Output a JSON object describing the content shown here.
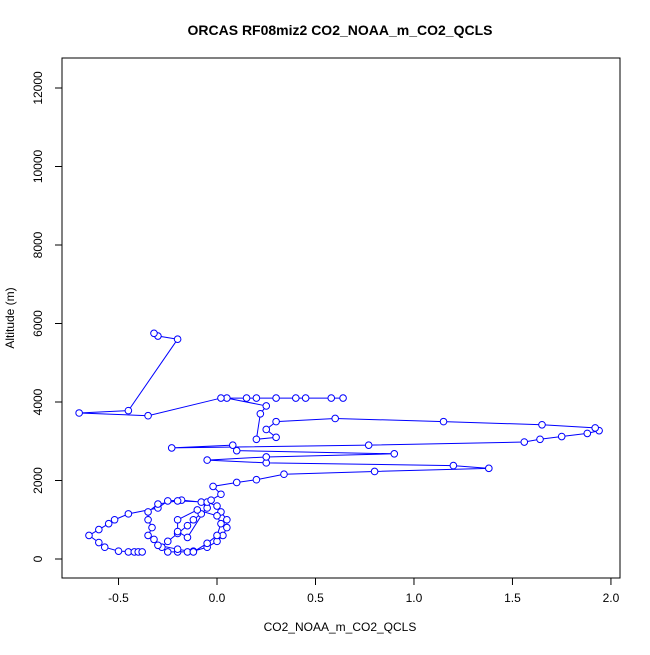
{
  "chart_data": {
    "type": "line",
    "title": "ORCAS RF08miz2 CO2_NOAA_m_CO2_QCLS",
    "x_label": "CO2_NOAA_m_CO2_QCLS",
    "y_label": "Altitude (m)",
    "x": [
      -0.45,
      -0.42,
      -0.4,
      -0.38,
      -0.5,
      -0.57,
      -0.6,
      -0.65,
      -0.6,
      -0.55,
      -0.52,
      -0.45,
      -0.3,
      -0.25,
      -0.18,
      -0.08,
      -0.05,
      -0.08,
      -0.12,
      -0.15,
      -0.2,
      -0.25,
      -0.28,
      -0.25,
      -0.2,
      -0.15,
      -0.12,
      -0.05,
      0.0,
      0.03,
      0.05,
      0.05,
      0.02,
      0.0,
      -0.05,
      -0.2,
      -0.3,
      -0.35,
      -0.35,
      -0.33,
      -0.35,
      -0.32,
      -0.3,
      -0.2,
      -0.12,
      -0.05,
      0.0,
      0.02,
      0.0,
      -0.1,
      -0.2,
      -0.2,
      -0.15,
      -0.03,
      0.02,
      -0.02,
      0.1,
      0.2,
      0.34,
      0.8,
      1.38,
      1.2,
      0.25,
      -0.05,
      0.25,
      0.9,
      0.1,
      0.08,
      -0.23,
      0.77,
      1.56,
      1.64,
      1.75,
      1.88,
      1.94,
      1.92,
      1.65,
      1.15,
      0.6,
      0.3,
      0.25,
      0.3,
      0.2,
      0.22,
      0.25,
      0.05,
      0.15,
      0.3,
      0.45,
      0.64,
      0.58,
      0.4,
      0.2,
      0.02,
      -0.35,
      -0.7,
      -0.45,
      -0.2,
      -0.3,
      -0.32
    ],
    "series": [
      {
        "color": "#0000ff",
        "values": [
          180,
          180,
          180,
          180,
          200,
          300,
          420,
          600,
          750,
          900,
          1000,
          1150,
          1300,
          1480,
          1500,
          1450,
          1300,
          1150,
          1000,
          850,
          650,
          450,
          300,
          180,
          180,
          180,
          200,
          300,
          450,
          600,
          800,
          1000,
          1200,
          1350,
          1450,
          1480,
          1400,
          1200,
          1000,
          800,
          600,
          500,
          350,
          250,
          180,
          400,
          600,
          900,
          1100,
          1250,
          1000,
          700,
          550,
          1500,
          1650,
          1850,
          1950,
          2020,
          2160,
          2230,
          2310,
          2380,
          2450,
          2520,
          2600,
          2680,
          2760,
          2900,
          2830,
          2900,
          2980,
          3050,
          3120,
          3200,
          3270,
          3340,
          3420,
          3500,
          3580,
          3500,
          3300,
          3100,
          3050,
          3700,
          3900,
          4100,
          4100,
          4100,
          4100,
          4100,
          4100,
          4100,
          4100,
          4100,
          3650,
          3720,
          3780,
          5600,
          5680,
          5750
        ]
      }
    ],
    "xlim": [
      -0.787,
      2.046
    ],
    "ylim": [
      -484,
      12764
    ],
    "xticks": [
      -0.5,
      {
        "value": 0,
        "label": "0.0"
      },
      0.5,
      {
        "value": 1,
        "label": "1.0"
      },
      1.5,
      {
        "value": 2,
        "label": "2.0"
      }
    ],
    "yticks": [
      0,
      2000,
      4000,
      6000,
      8000,
      10000,
      12000
    ]
  }
}
